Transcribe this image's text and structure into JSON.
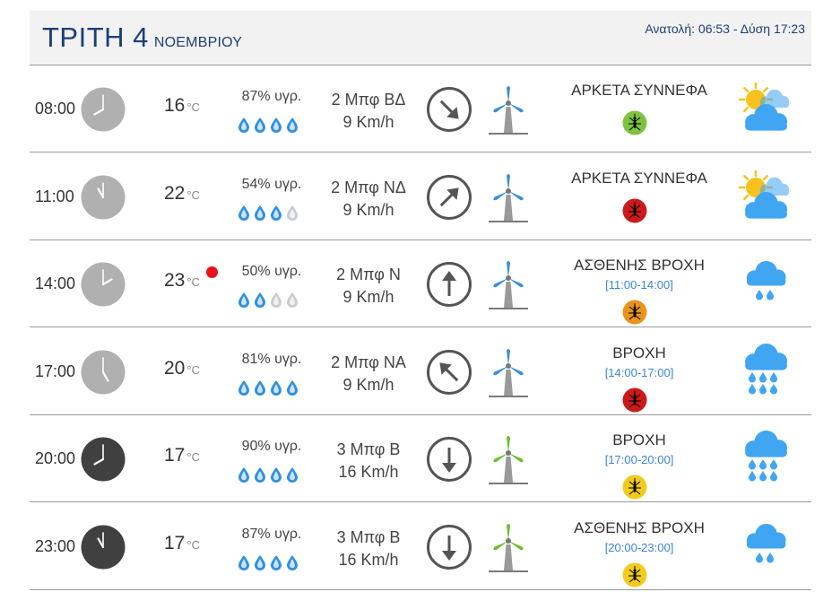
{
  "header": {
    "day": "ΤΡΙΤΗ 4",
    "month": "ΝΟΕΜΒΡΙΟΥ",
    "sun": "Ανατολή: 06:53  - Δύση 17:23"
  },
  "colors": {
    "title": "#1d3f77",
    "period": "#3a86d9",
    "drop_full": "#2f8fe0",
    "drop_empty": "#c9ccd1",
    "clock_day": "#b0b0b0",
    "clock_night": "#404040",
    "turbine_blue": "#3b8ed8",
    "turbine_green": "#6dbd2f",
    "alert_red": "#e8121b"
  },
  "rows": [
    {
      "time": "08:00",
      "hour": 8,
      "night": false,
      "temp": "16",
      "unit": "°C",
      "hot": false,
      "humidity": "87% υγρ.",
      "drops": 4,
      "wind_force": "2 Μπφ ΒΔ",
      "wind_speed": "9 Km/h",
      "wind_to": 135,
      "turbine": "blue-turbine",
      "condition": "ΑΡΚΕΤΑ ΣΥΝΝΕΦΑ",
      "period": "",
      "mosquito": "#7fc242",
      "icon": "partly-cloudy-icon"
    },
    {
      "time": "11:00",
      "hour": 11,
      "night": false,
      "temp": "22",
      "unit": "°C",
      "hot": false,
      "humidity": "54% υγρ.",
      "drops": 3,
      "wind_force": "2 Μπφ ΝΔ",
      "wind_speed": "9 Km/h",
      "wind_to": 45,
      "turbine": "blue-turbine",
      "condition": "ΑΡΚΕΤΑ ΣΥΝΝΕΦΑ",
      "period": "",
      "mosquito": "#cc1a1a",
      "icon": "partly-cloudy-icon"
    },
    {
      "time": "14:00",
      "hour": 14,
      "night": false,
      "temp": "23",
      "unit": "°C",
      "hot": true,
      "humidity": "50% υγρ.",
      "drops": 2,
      "wind_force": "2 Μπφ Ν",
      "wind_speed": "9 Km/h",
      "wind_to": 0,
      "turbine": "blue-turbine",
      "condition": "ΑΣΘΕΝΗΣ ΒΡΟΧΗ",
      "period": "[11:00-14:00]",
      "mosquito": "#e8941c",
      "icon": "light-rain-icon"
    },
    {
      "time": "17:00",
      "hour": 17,
      "night": false,
      "temp": "20",
      "unit": "°C",
      "hot": false,
      "humidity": "81% υγρ.",
      "drops": 4,
      "wind_force": "2 Μπφ ΝΑ",
      "wind_speed": "9 Km/h",
      "wind_to": -45,
      "turbine": "blue-turbine",
      "condition": "ΒΡΟΧΗ",
      "period": "[14:00-17:00]",
      "mosquito": "#cc1a1a",
      "icon": "rain-icon"
    },
    {
      "time": "20:00",
      "hour": 20,
      "night": true,
      "temp": "17",
      "unit": "°C",
      "hot": false,
      "humidity": "90% υγρ.",
      "drops": 4,
      "wind_force": "3 Μπφ Β",
      "wind_speed": "16 Km/h",
      "wind_to": 180,
      "turbine": "green-turbine",
      "condition": "ΒΡΟΧΗ",
      "period": "[17:00-20:00]",
      "mosquito": "#f2cb1d",
      "icon": "rain-icon"
    },
    {
      "time": "23:00",
      "hour": 23,
      "night": true,
      "temp": "17",
      "unit": "°C",
      "hot": false,
      "humidity": "87% υγρ.",
      "drops": 4,
      "wind_force": "3 Μπφ Β",
      "wind_speed": "16 Km/h",
      "wind_to": 180,
      "turbine": "green-turbine",
      "condition": "ΑΣΘΕΝΗΣ ΒΡΟΧΗ",
      "period": "[20:00-23:00]",
      "mosquito": "#f2cb1d",
      "icon": "light-rain-icon"
    }
  ]
}
